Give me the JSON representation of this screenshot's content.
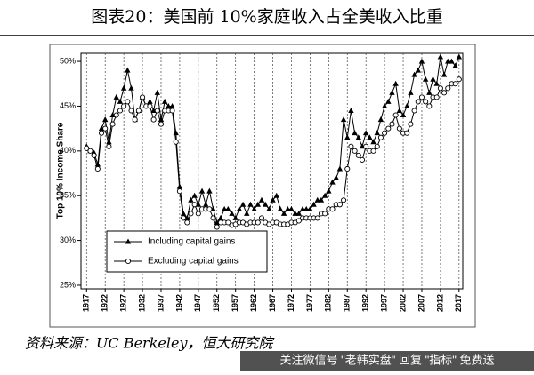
{
  "chart_data": {
    "type": "line",
    "title": "图表20：美国前 10%家庭收入占全美收入比重",
    "ylabel": "Top 10% Income Share",
    "source": "资料来源：UC Berkeley，恒大研究院",
    "watermark": "关注微信号 \"老韩实盘\" 回复 \"指标\" 免费送",
    "x": [
      1917,
      1918,
      1919,
      1920,
      1921,
      1922,
      1923,
      1924,
      1925,
      1926,
      1927,
      1928,
      1929,
      1930,
      1931,
      1932,
      1933,
      1934,
      1935,
      1936,
      1937,
      1938,
      1939,
      1940,
      1941,
      1942,
      1943,
      1944,
      1945,
      1946,
      1947,
      1948,
      1949,
      1950,
      1951,
      1952,
      1953,
      1954,
      1955,
      1956,
      1957,
      1958,
      1959,
      1960,
      1961,
      1962,
      1963,
      1964,
      1965,
      1966,
      1967,
      1968,
      1969,
      1970,
      1971,
      1972,
      1973,
      1974,
      1975,
      1976,
      1977,
      1978,
      1979,
      1980,
      1981,
      1982,
      1983,
      1984,
      1985,
      1986,
      1987,
      1988,
      1989,
      1990,
      1991,
      1992,
      1993,
      1994,
      1995,
      1996,
      1997,
      1998,
      1999,
      2000,
      2001,
      2002,
      2003,
      2004,
      2005,
      2006,
      2007,
      2008,
      2009,
      2010,
      2011,
      2012,
      2013,
      2014,
      2015,
      2016,
      2017
    ],
    "series": [
      {
        "name": "Including capital gains",
        "color": "#000000",
        "marker": "triangle",
        "values": [
          40.5,
          40,
          39.8,
          38.5,
          42.5,
          43.5,
          41,
          44,
          46,
          45.5,
          47,
          49,
          47,
          43.5,
          44.5,
          46,
          45,
          45.5,
          44.5,
          46.5,
          43.5,
          45.5,
          45,
          45,
          42,
          36,
          33,
          32.5,
          34.5,
          35,
          34,
          35.5,
          34,
          35.5,
          33.5,
          32,
          32.5,
          33.5,
          33.5,
          33,
          32.5,
          33.5,
          34,
          33,
          34,
          33.5,
          34,
          34.5,
          34,
          33.5,
          34.5,
          35,
          33.5,
          33,
          33.5,
          33.5,
          33,
          33,
          33.5,
          33.5,
          33.5,
          34,
          34.5,
          34.5,
          35,
          35.5,
          36.5,
          37,
          38,
          43.5,
          41.5,
          44.5,
          42,
          41.5,
          40.5,
          42,
          41.5,
          41,
          42,
          43.5,
          45,
          45.5,
          46.5,
          47.5,
          44.5,
          44,
          45,
          46.5,
          48.5,
          49,
          50,
          48,
          46.5,
          48,
          47.5,
          50.5,
          48.5,
          50,
          50,
          49.5,
          50.5
        ]
      },
      {
        "name": "Excluding capital gains",
        "color": "#000000",
        "marker": "circle",
        "values": [
          40.3,
          40,
          39.5,
          38,
          42,
          42.5,
          40.5,
          43,
          44,
          44.5,
          45,
          45.5,
          44.5,
          43.5,
          44.5,
          46,
          45,
          45,
          43.5,
          44.5,
          43,
          44.5,
          44.5,
          44.5,
          41,
          35.5,
          32.5,
          32,
          33,
          34,
          33,
          33.5,
          33.5,
          33.5,
          32.5,
          31.5,
          32,
          32,
          32,
          31.7,
          31.8,
          32,
          32,
          31.8,
          32,
          32,
          32,
          32.5,
          32,
          31.8,
          32,
          32,
          31.8,
          31.8,
          31.8,
          32,
          32,
          32.2,
          32.5,
          32.5,
          32.5,
          32.5,
          32.5,
          33,
          33,
          33.5,
          33.5,
          34,
          34,
          34.5,
          38,
          40.5,
          40,
          39.5,
          39,
          40.5,
          40,
          40,
          40.5,
          41.5,
          42,
          42.5,
          43,
          44,
          42.5,
          42,
          42,
          43,
          44.5,
          45.5,
          46,
          45.5,
          45,
          46,
          46,
          47,
          46.5,
          47,
          47.5,
          47.5,
          48
        ]
      }
    ],
    "xlim": [
      1915.5,
      2018
    ],
    "xticks": [
      1917,
      1922,
      1927,
      1932,
      1937,
      1942,
      1947,
      1952,
      1957,
      1962,
      1967,
      1972,
      1977,
      1982,
      1987,
      1992,
      1997,
      2002,
      2007,
      2012,
      2017
    ],
    "ylim": [
      24.6,
      50.9
    ],
    "yticks": [
      {
        "value": 25,
        "label": "25%"
      },
      {
        "value": 30,
        "label": "30%"
      },
      {
        "value": 35,
        "label": "35%"
      },
      {
        "value": 40,
        "label": "40%"
      },
      {
        "value": 45,
        "label": "45%"
      },
      {
        "value": 50,
        "label": "50%"
      }
    ],
    "grid": true
  }
}
